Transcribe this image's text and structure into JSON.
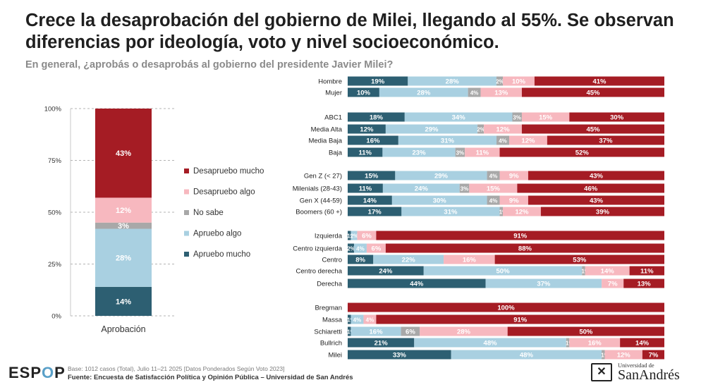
{
  "header": {
    "title": "Crece la desaprobación del gobierno de Milei, llegando al 55%. Se observan diferencias por ideología, voto y nivel socioeconómico.",
    "subtitle": "En general, ¿aprobás o desaprobás al gobierno del presidente Javier Milei?"
  },
  "colors": {
    "apruebo_mucho": "#2d5f72",
    "apruebo_algo": "#a9d0e1",
    "no_sabe": "#a8a8a8",
    "desapruebo_algo": "#f7b8bf",
    "desapruebo_mucho": "#a51c24"
  },
  "chart_data": [
    {
      "type": "bar",
      "stacked": true,
      "categories": [
        "Aprobación"
      ],
      "xlabel": "Aprobación",
      "yticks": [
        "0%",
        "25%",
        "50%",
        "75%",
        "100%"
      ],
      "ylim": [
        0,
        100
      ],
      "grid": true,
      "legend_position": "right",
      "series": [
        {
          "name": "Apruebo mucho",
          "values": [
            14
          ],
          "label": "14%"
        },
        {
          "name": "Apruebo algo",
          "values": [
            28
          ],
          "label": "28%"
        },
        {
          "name": "No sabe",
          "values": [
            3
          ],
          "label": "3%"
        },
        {
          "name": "Desapruebo algo",
          "values": [
            12
          ],
          "label": "12%"
        },
        {
          "name": "Desapruebo mucho",
          "values": [
            43
          ],
          "label": "43%"
        }
      ],
      "legend_order": [
        "Desapruebo mucho",
        "Desapruebo algo",
        "No sabe",
        "Apruebo algo",
        "Apruebo mucho"
      ]
    },
    {
      "type": "bar",
      "orientation": "horizontal",
      "stacked": true,
      "normalized": true,
      "series_order": [
        "Apruebo mucho",
        "Apruebo algo",
        "No sabe",
        "Desapruebo algo",
        "Desapruebo mucho"
      ],
      "groups": [
        {
          "rows": [
            {
              "label": "Hombre",
              "values": [
                19,
                28,
                2,
                10,
                41
              ]
            },
            {
              "label": "Mujer",
              "values": [
                10,
                28,
                4,
                13,
                45
              ]
            }
          ]
        },
        {
          "rows": [
            {
              "label": "ABC1",
              "values": [
                18,
                34,
                3,
                15,
                30
              ]
            },
            {
              "label": "Media Alta",
              "values": [
                12,
                29,
                2,
                12,
                45
              ]
            },
            {
              "label": "Media Baja",
              "values": [
                16,
                31,
                4,
                12,
                37
              ]
            },
            {
              "label": "Baja",
              "values": [
                11,
                23,
                3,
                11,
                52
              ]
            }
          ]
        },
        {
          "rows": [
            {
              "label": "Gen Z (< 27)",
              "values": [
                15,
                29,
                4,
                9,
                43
              ]
            },
            {
              "label": "Milenials (28-43)",
              "values": [
                11,
                24,
                3,
                15,
                46
              ]
            },
            {
              "label": "Gen X (44-59)",
              "values": [
                14,
                30,
                4,
                9,
                43
              ]
            },
            {
              "label": "Boomers (60 +)",
              "values": [
                17,
                31,
                1,
                12,
                39
              ]
            }
          ]
        },
        {
          "rows": [
            {
              "label": "Izquierda",
              "values": [
                1,
                2,
                0,
                6,
                91
              ]
            },
            {
              "label": "Centro izquierda",
              "values": [
                2,
                4,
                0,
                6,
                88
              ]
            },
            {
              "label": "Centro",
              "values": [
                8,
                22,
                0,
                16,
                53
              ]
            },
            {
              "label": "Centro derecha",
              "values": [
                24,
                50,
                1,
                14,
                11
              ]
            },
            {
              "label": "Derecha",
              "values": [
                44,
                37,
                0,
                7,
                13
              ]
            }
          ]
        },
        {
          "rows": [
            {
              "label": "Bregman",
              "values": [
                0,
                0,
                0,
                0,
                100
              ]
            },
            {
              "label": "Massa",
              "values": [
                1,
                4,
                0,
                4,
                91
              ]
            },
            {
              "label": "Schiaretti",
              "values": [
                1,
                16,
                6,
                28,
                50
              ]
            },
            {
              "label": "Bullrich",
              "values": [
                21,
                48,
                1,
                16,
                14
              ]
            },
            {
              "label": "Milei",
              "values": [
                33,
                48,
                1,
                12,
                7
              ]
            }
          ]
        }
      ]
    }
  ],
  "footer": {
    "logo_left": "ESP",
    "logo_o": "O",
    "logo_right": "P",
    "base": "Base: 1012 casos (Total), Julio 11–21 2025 [Datos Ponderados Según Voto 2023]",
    "source": "Fuente: Encuesta de Satisfacción Política y Opinión Pública – Universidad de San Andrés",
    "university_small": "Universidad de",
    "university_big": "SanAndrés",
    "shield_glyph": "✕"
  }
}
